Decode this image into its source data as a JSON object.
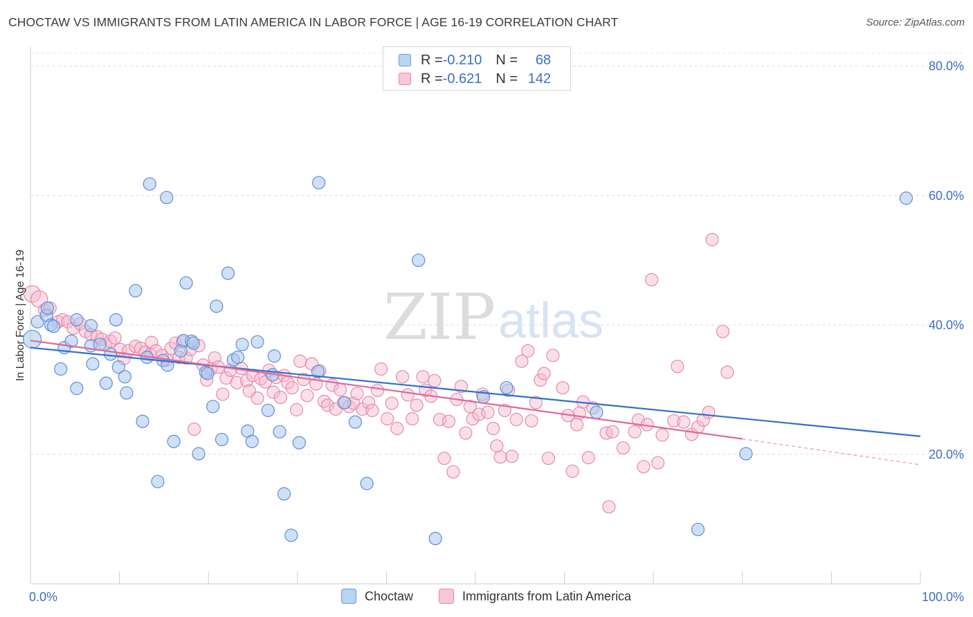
{
  "title": "CHOCTAW VS IMMIGRANTS FROM LATIN AMERICA IN LABOR FORCE | AGE 16-19 CORRELATION CHART",
  "source": "Source: ZipAtlas.com",
  "watermark": {
    "zip": "ZIP",
    "atlas": "atlas"
  },
  "colors": {
    "choctaw_fill": "#a9c7ee",
    "choctaw_stroke": "#5b8fd6",
    "choctaw_line": "#2f6fd0",
    "latin_fill": "#f6b9cd",
    "latin_stroke": "#e58aab",
    "latin_line": "#e0679a",
    "tick_label": "#3a6fc6"
  },
  "legend": {
    "rows": [
      {
        "r_label": "R = ",
        "r_value": "-0.210",
        "n_label": "N = ",
        "n_value": "68"
      },
      {
        "r_label": "R = ",
        "r_value": "-0.621",
        "n_label": "N = ",
        "n_value": "142"
      }
    ]
  },
  "bottom_legend": [
    "Choctaw",
    "Immigrants from Latin America"
  ],
  "chart_data": {
    "type": "scatter",
    "title": "CHOCTAW VS IMMIGRANTS FROM LATIN AMERICA IN LABOR FORCE | AGE 16-19 CORRELATION CHART",
    "xlabel": "",
    "ylabel": "In Labor Force | Age 16-19",
    "xlim": [
      0,
      100
    ],
    "ylim": [
      0,
      82
    ],
    "x_tick_labels": [
      "0.0%",
      "100.0%"
    ],
    "y_ticks": [
      20,
      40,
      60,
      80
    ],
    "y_tick_labels": [
      "20.0%",
      "40.0%",
      "60.0%",
      "80.0%"
    ],
    "grid": true,
    "legend_position": "top-center",
    "series": [
      {
        "name": "Choctaw",
        "r": -0.21,
        "n": 68,
        "trend": {
          "x": [
            0,
            100
          ],
          "y": [
            36.5,
            22.8
          ]
        },
        "points": [
          [
            0.2,
            37.8
          ],
          [
            0.8,
            40.5
          ],
          [
            1.8,
            41.5
          ],
          [
            1.9,
            42.6
          ],
          [
            2.3,
            40.0
          ],
          [
            2.6,
            39.8
          ],
          [
            3.4,
            33.2
          ],
          [
            3.8,
            36.5
          ],
          [
            4.6,
            37.5
          ],
          [
            5.2,
            40.8
          ],
          [
            5.2,
            30.2
          ],
          [
            6.8,
            39.9
          ],
          [
            7.0,
            34.0
          ],
          [
            6.8,
            36.8
          ],
          [
            7.8,
            37.0
          ],
          [
            8.5,
            31.0
          ],
          [
            9.0,
            35.5
          ],
          [
            9.6,
            40.8
          ],
          [
            9.9,
            33.5
          ],
          [
            10.6,
            32.0
          ],
          [
            10.8,
            29.5
          ],
          [
            11.8,
            45.3
          ],
          [
            12.6,
            25.1
          ],
          [
            13.1,
            35.0
          ],
          [
            13.4,
            61.8
          ],
          [
            14.3,
            15.8
          ],
          [
            14.9,
            34.5
          ],
          [
            15.3,
            59.7
          ],
          [
            15.4,
            33.8
          ],
          [
            16.1,
            22.0
          ],
          [
            16.9,
            36.0
          ],
          [
            17.2,
            37.6
          ],
          [
            17.5,
            46.5
          ],
          [
            18.1,
            37.5
          ],
          [
            18.3,
            37.2
          ],
          [
            18.9,
            20.1
          ],
          [
            19.7,
            32.7
          ],
          [
            19.9,
            32.5
          ],
          [
            20.5,
            27.4
          ],
          [
            20.9,
            42.9
          ],
          [
            21.5,
            22.3
          ],
          [
            22.2,
            48.0
          ],
          [
            22.8,
            34.6
          ],
          [
            23.3,
            35.0
          ],
          [
            23.8,
            37.0
          ],
          [
            24.4,
            23.6
          ],
          [
            24.9,
            22.0
          ],
          [
            25.5,
            37.4
          ],
          [
            26.7,
            26.8
          ],
          [
            27.2,
            32.3
          ],
          [
            27.4,
            35.2
          ],
          [
            28.0,
            23.5
          ],
          [
            28.5,
            13.9
          ],
          [
            29.3,
            7.5
          ],
          [
            30.2,
            21.8
          ],
          [
            32.3,
            32.8
          ],
          [
            32.4,
            62.0
          ],
          [
            35.3,
            28.0
          ],
          [
            36.5,
            25.0
          ],
          [
            37.8,
            15.5
          ],
          [
            43.6,
            50.0
          ],
          [
            45.5,
            7.0
          ],
          [
            50.9,
            28.9
          ],
          [
            53.5,
            30.3
          ],
          [
            63.6,
            26.5
          ],
          [
            75.0,
            8.4
          ],
          [
            80.4,
            20.1
          ],
          [
            98.4,
            59.6
          ]
        ]
      },
      {
        "name": "Immigrants from Latin America",
        "r": -0.621,
        "n": 142,
        "trend": {
          "x": [
            0,
            80
          ],
          "y": [
            37.6,
            22.4
          ]
        },
        "trend_extension": {
          "x": [
            80,
            100
          ],
          "y": [
            22.4,
            18.4
          ]
        },
        "points": [
          [
            0.2,
            44.8
          ],
          [
            1.0,
            44.0
          ],
          [
            1.6,
            42.3
          ],
          [
            2.2,
            42.6
          ],
          [
            3.1,
            40.5
          ],
          [
            3.6,
            40.8
          ],
          [
            4.2,
            40.5
          ],
          [
            4.8,
            39.5
          ],
          [
            5.6,
            40.2
          ],
          [
            6.2,
            39.0
          ],
          [
            6.8,
            38.5
          ],
          [
            7.5,
            38.2
          ],
          [
            8.0,
            37.8
          ],
          [
            8.4,
            36.9
          ],
          [
            9.0,
            37.5
          ],
          [
            9.5,
            38.0
          ],
          [
            10.1,
            36.2
          ],
          [
            10.5,
            34.8
          ],
          [
            11.0,
            36.0
          ],
          [
            11.8,
            36.7
          ],
          [
            12.4,
            36.4
          ],
          [
            12.9,
            35.8
          ],
          [
            13.5,
            35.4
          ],
          [
            13.6,
            37.3
          ],
          [
            14.1,
            36.0
          ],
          [
            14.8,
            35.3
          ],
          [
            15.3,
            34.6
          ],
          [
            15.8,
            36.4
          ],
          [
            16.3,
            37.2
          ],
          [
            16.7,
            35.0
          ],
          [
            17.1,
            37.4
          ],
          [
            17.5,
            34.9
          ],
          [
            18.0,
            36.2
          ],
          [
            18.4,
            23.9
          ],
          [
            18.9,
            36.8
          ],
          [
            19.4,
            33.8
          ],
          [
            19.8,
            31.5
          ],
          [
            20.3,
            33.2
          ],
          [
            20.7,
            34.9
          ],
          [
            21.1,
            33.5
          ],
          [
            21.6,
            29.3
          ],
          [
            22.0,
            31.8
          ],
          [
            22.5,
            33.0
          ],
          [
            23.2,
            31.1
          ],
          [
            23.7,
            33.3
          ],
          [
            24.3,
            31.4
          ],
          [
            24.6,
            29.8
          ],
          [
            25.0,
            32.2
          ],
          [
            25.5,
            28.7
          ],
          [
            25.9,
            31.7
          ],
          [
            26.4,
            31.2
          ],
          [
            26.8,
            33.0
          ],
          [
            27.3,
            29.6
          ],
          [
            27.6,
            31.9
          ],
          [
            28.1,
            28.8
          ],
          [
            28.5,
            32.2
          ],
          [
            28.9,
            31.1
          ],
          [
            29.4,
            30.3
          ],
          [
            29.9,
            26.9
          ],
          [
            30.3,
            34.4
          ],
          [
            30.7,
            31.6
          ],
          [
            31.1,
            29.1
          ],
          [
            31.6,
            34.0
          ],
          [
            32.1,
            30.9
          ],
          [
            32.5,
            32.9
          ],
          [
            33.0,
            28.2
          ],
          [
            33.4,
            27.6
          ],
          [
            33.9,
            30.7
          ],
          [
            34.3,
            27.0
          ],
          [
            34.8,
            30.0
          ],
          [
            35.2,
            28.0
          ],
          [
            35.8,
            27.4
          ],
          [
            36.3,
            27.9
          ],
          [
            36.7,
            29.4
          ],
          [
            37.3,
            27.0
          ],
          [
            38.0,
            28.0
          ],
          [
            38.4,
            26.8
          ],
          [
            39.0,
            29.9
          ],
          [
            39.4,
            33.2
          ],
          [
            40.1,
            25.5
          ],
          [
            40.6,
            27.9
          ],
          [
            41.2,
            24.0
          ],
          [
            41.8,
            32.0
          ],
          [
            42.4,
            29.2
          ],
          [
            42.9,
            25.5
          ],
          [
            43.4,
            27.6
          ],
          [
            44.1,
            32.0
          ],
          [
            44.4,
            29.9
          ],
          [
            45.0,
            29.0
          ],
          [
            45.4,
            31.4
          ],
          [
            46.0,
            25.4
          ],
          [
            46.5,
            19.4
          ],
          [
            47.0,
            25.1
          ],
          [
            47.5,
            17.3
          ],
          [
            47.9,
            28.5
          ],
          [
            48.4,
            30.5
          ],
          [
            48.9,
            23.3
          ],
          [
            49.4,
            27.4
          ],
          [
            49.7,
            25.5
          ],
          [
            50.4,
            26.2
          ],
          [
            50.8,
            29.3
          ],
          [
            51.4,
            26.5
          ],
          [
            52.0,
            24.0
          ],
          [
            52.4,
            21.3
          ],
          [
            52.8,
            19.6
          ],
          [
            53.3,
            26.8
          ],
          [
            53.7,
            29.9
          ],
          [
            54.1,
            19.7
          ],
          [
            54.6,
            25.4
          ],
          [
            55.2,
            34.4
          ],
          [
            55.9,
            36.0
          ],
          [
            56.3,
            25.2
          ],
          [
            56.8,
            28.0
          ],
          [
            57.3,
            31.5
          ],
          [
            57.7,
            32.5
          ],
          [
            58.2,
            19.4
          ],
          [
            58.7,
            35.3
          ],
          [
            59.8,
            30.3
          ],
          [
            60.4,
            26.0
          ],
          [
            60.9,
            17.4
          ],
          [
            61.4,
            24.6
          ],
          [
            61.7,
            26.4
          ],
          [
            62.1,
            28.1
          ],
          [
            62.7,
            19.5
          ],
          [
            63.2,
            27.2
          ],
          [
            64.7,
            23.3
          ],
          [
            65.4,
            23.5
          ],
          [
            65.0,
            11.9
          ],
          [
            66.6,
            21.0
          ],
          [
            67.9,
            23.5
          ],
          [
            68.3,
            25.3
          ],
          [
            68.9,
            18.1
          ],
          [
            69.3,
            24.6
          ],
          [
            69.8,
            47.0
          ],
          [
            70.5,
            18.7
          ],
          [
            71.0,
            23.0
          ],
          [
            72.3,
            25.2
          ],
          [
            72.7,
            33.6
          ],
          [
            73.4,
            25.0
          ],
          [
            74.3,
            23.1
          ],
          [
            75.0,
            24.2
          ],
          [
            75.6,
            25.3
          ],
          [
            76.2,
            26.5
          ],
          [
            76.6,
            53.2
          ],
          [
            77.8,
            39.0
          ],
          [
            78.3,
            32.7
          ]
        ]
      }
    ]
  }
}
